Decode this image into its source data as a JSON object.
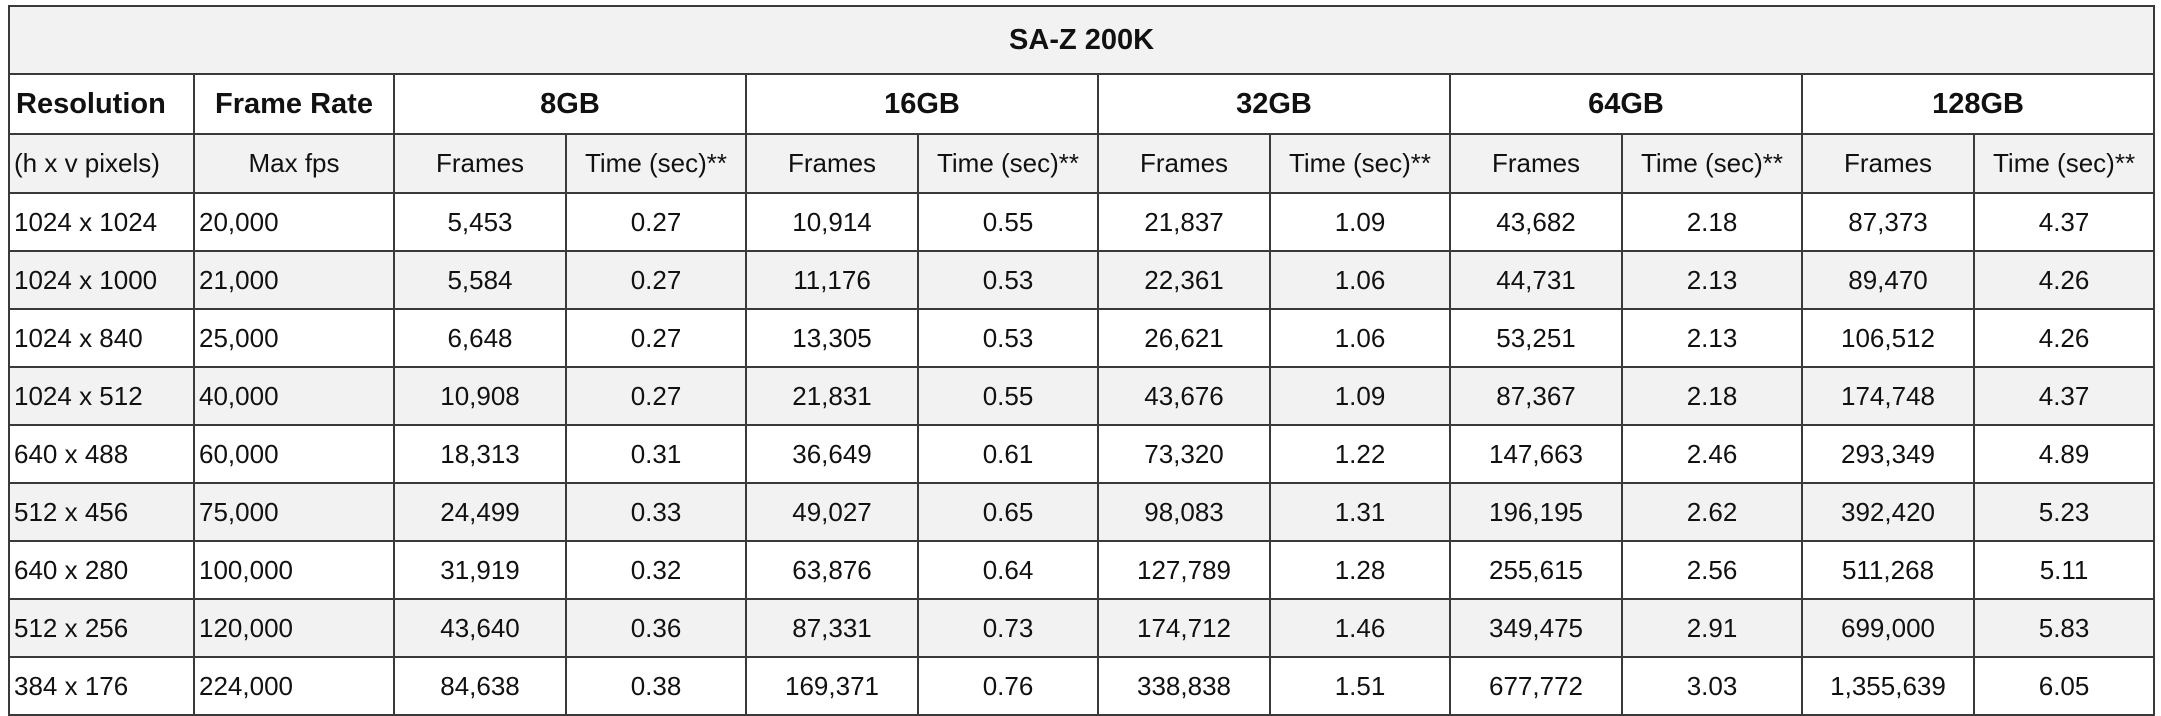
{
  "title": "SA-Z 200K",
  "headers": {
    "resolution": "Resolution",
    "frame_rate": "Frame Rate",
    "capacities": [
      "8GB",
      "16GB",
      "32GB",
      "64GB",
      "128GB"
    ]
  },
  "subheaders": {
    "resolution_unit": "(h x v pixels)",
    "frame_rate_unit": "Max fps",
    "frames": "Frames",
    "time": "Time (sec)**"
  },
  "rows": [
    {
      "resolution": "1024 x 1024",
      "fps": "20,000",
      "cells": [
        "5,453",
        "0.27",
        "10,914",
        "0.55",
        "21,837",
        "1.09",
        "43,682",
        "2.18",
        "87,373",
        "4.37"
      ]
    },
    {
      "resolution": "1024 x 1000",
      "fps": "21,000",
      "cells": [
        "5,584",
        "0.27",
        "11,176",
        "0.53",
        "22,361",
        "1.06",
        "44,731",
        "2.13",
        "89,470",
        "4.26"
      ]
    },
    {
      "resolution": "1024 x 840",
      "fps": "25,000",
      "cells": [
        "6,648",
        "0.27",
        "13,305",
        "0.53",
        "26,621",
        "1.06",
        "53,251",
        "2.13",
        "106,512",
        "4.26"
      ]
    },
    {
      "resolution": "1024 x 512",
      "fps": "40,000",
      "cells": [
        "10,908",
        "0.27",
        "21,831",
        "0.55",
        "43,676",
        "1.09",
        "87,367",
        "2.18",
        "174,748",
        "4.37"
      ]
    },
    {
      "resolution": "640 x 488",
      "fps": "60,000",
      "cells": [
        "18,313",
        "0.31",
        "36,649",
        "0.61",
        "73,320",
        "1.22",
        "147,663",
        "2.46",
        "293,349",
        "4.89"
      ]
    },
    {
      "resolution": "512 x 456",
      "fps": "75,000",
      "cells": [
        "24,499",
        "0.33",
        "49,027",
        "0.65",
        "98,083",
        "1.31",
        "196,195",
        "2.62",
        "392,420",
        "5.23"
      ]
    },
    {
      "resolution": "640 x 280",
      "fps": "100,000",
      "cells": [
        "31,919",
        "0.32",
        "63,876",
        "0.64",
        "127,789",
        "1.28",
        "255,615",
        "2.56",
        "511,268",
        "5.11"
      ]
    },
    {
      "resolution": "512 x 256",
      "fps": "120,000",
      "cells": [
        "43,640",
        "0.36",
        "87,331",
        "0.73",
        "174,712",
        "1.46",
        "349,475",
        "2.91",
        "699,000",
        "5.83"
      ]
    },
    {
      "resolution": "384 x 176",
      "fps": "224,000",
      "cells": [
        "84,638",
        "0.38",
        "169,371",
        "0.76",
        "338,838",
        "1.51",
        "677,772",
        "3.03",
        "1,355,639",
        "6.05"
      ]
    }
  ]
}
